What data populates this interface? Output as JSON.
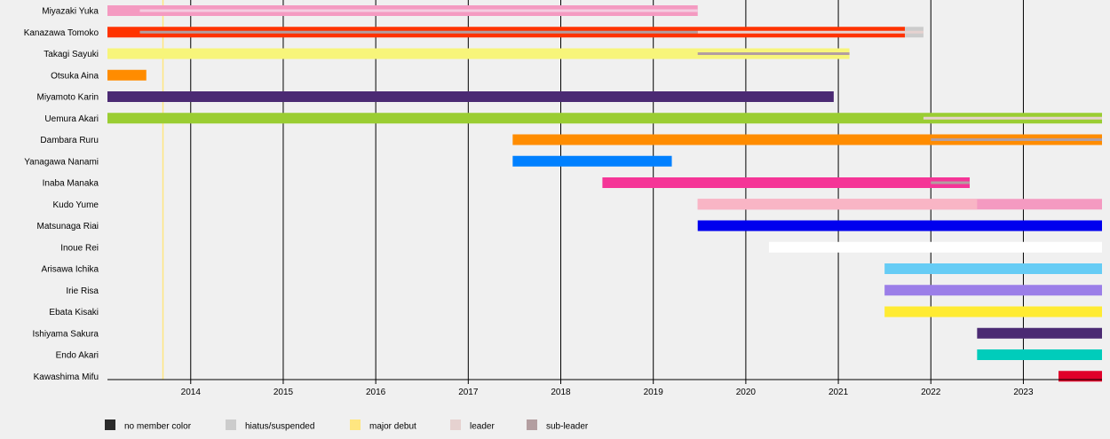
{
  "chart_data": {
    "type": "timeline",
    "title": "",
    "xlabel": "",
    "ylabel": "",
    "x_range": [
      2013.1,
      2023.85
    ],
    "x_ticks": [
      "2014",
      "2015",
      "2016",
      "2017",
      "2018",
      "2019",
      "2020",
      "2021",
      "2022",
      "2023"
    ],
    "grid": "vertical-at-years",
    "legend_position": "bottom-left",
    "events": [
      {
        "label": "major debut",
        "date": 2013.7,
        "color": "#ffe680"
      }
    ],
    "members": [
      {
        "name": "Miyazaki Yuka",
        "color": "#f49ac1",
        "start": 2013.1,
        "end": 2019.48,
        "overlays": [
          {
            "role": "leader",
            "start": 2013.45,
            "end": 2019.48,
            "color": "#f4cce0"
          }
        ]
      },
      {
        "name": "Kanazawa Tomoko",
        "color": "#ff3300",
        "start": 2013.1,
        "end": 2021.72,
        "hiatus": [
          {
            "start": 2021.72,
            "end": 2021.92
          }
        ],
        "overlays": [
          {
            "role": "sub-leader",
            "start": 2013.45,
            "end": 2019.48,
            "color": "#b39ea0"
          },
          {
            "role": "leader",
            "start": 2019.48,
            "end": 2021.92,
            "color": "#e6d2d0"
          }
        ]
      },
      {
        "name": "Takagi Sayuki",
        "color": "#f7f57a",
        "start": 2013.1,
        "end": 2021.12,
        "overlays": [
          {
            "role": "sub-leader",
            "start": 2019.48,
            "end": 2021.12,
            "color": "#b39ea0"
          }
        ]
      },
      {
        "name": "Otsuka Aina",
        "color": "#ff8c00",
        "start": 2013.1,
        "end": 2013.52,
        "overlays": []
      },
      {
        "name": "Miyamoto Karin",
        "color": "#4b2a73",
        "start": 2013.1,
        "end": 2020.95,
        "overlays": []
      },
      {
        "name": "Uemura Akari",
        "color": "#9acd32",
        "start": 2013.1,
        "end": 2023.85,
        "overlays": [
          {
            "role": "leader",
            "start": 2021.92,
            "end": 2023.85,
            "color": "#e6d2d0"
          }
        ]
      },
      {
        "name": "Dambara Ruru",
        "color": "#ff8c00",
        "start": 2017.48,
        "end": 2023.85,
        "overlays": [
          {
            "role": "sub-leader",
            "start": 2022.0,
            "end": 2023.85,
            "color": "#b39ea0"
          }
        ]
      },
      {
        "name": "Yanagawa Nanami",
        "color": "#0080ff",
        "start": 2017.48,
        "end": 2019.2,
        "overlays": []
      },
      {
        "name": "Inaba Manaka",
        "color": "#f53597",
        "start": 2018.45,
        "end": 2022.42,
        "overlays": [
          {
            "role": "sub-leader",
            "start": 2022.0,
            "end": 2022.42,
            "color": "#b39ea0"
          }
        ]
      },
      {
        "name": "Kudo Yume",
        "color": "#f49ac1",
        "start": 2019.48,
        "end": 2023.85,
        "segments": [
          {
            "start": 2019.48,
            "end": 2022.5,
            "color": "#f9b5c5"
          }
        ],
        "overlays": []
      },
      {
        "name": "Matsunaga Riai",
        "color": "#0000ee",
        "start": 2019.48,
        "end": 2023.85,
        "overlays": []
      },
      {
        "name": "Inoue Rei",
        "color": "#ffffff",
        "start": 2020.25,
        "end": 2023.85,
        "overlays": []
      },
      {
        "name": "Arisawa Ichika",
        "color": "#66ccf5",
        "start": 2021.5,
        "end": 2023.85,
        "overlays": []
      },
      {
        "name": "Irie Risa",
        "color": "#9b7ee8",
        "start": 2021.5,
        "end": 2023.85,
        "overlays": []
      },
      {
        "name": "Ebata Kisaki",
        "color": "#ffeb33",
        "start": 2021.5,
        "end": 2023.85,
        "overlays": []
      },
      {
        "name": "Ishiyama Sakura",
        "color": "#4b2a73",
        "start": 2022.5,
        "end": 2023.85,
        "overlays": []
      },
      {
        "name": "Endo Akari",
        "color": "#00ccbb",
        "start": 2022.5,
        "end": 2023.85,
        "overlays": []
      },
      {
        "name": "Kawashima Mifu",
        "color": "#e0002a",
        "start": 2023.38,
        "end": 2023.85,
        "overlays": []
      }
    ],
    "legend": [
      {
        "label": "no member color",
        "color": "#2b2b2b"
      },
      {
        "label": "hiatus/suspended",
        "color": "#cccccc"
      },
      {
        "label": "major debut",
        "color": "#ffe680"
      },
      {
        "label": "leader",
        "color": "#e6d2d0"
      },
      {
        "label": "sub-leader",
        "color": "#b39ea0"
      }
    ]
  }
}
